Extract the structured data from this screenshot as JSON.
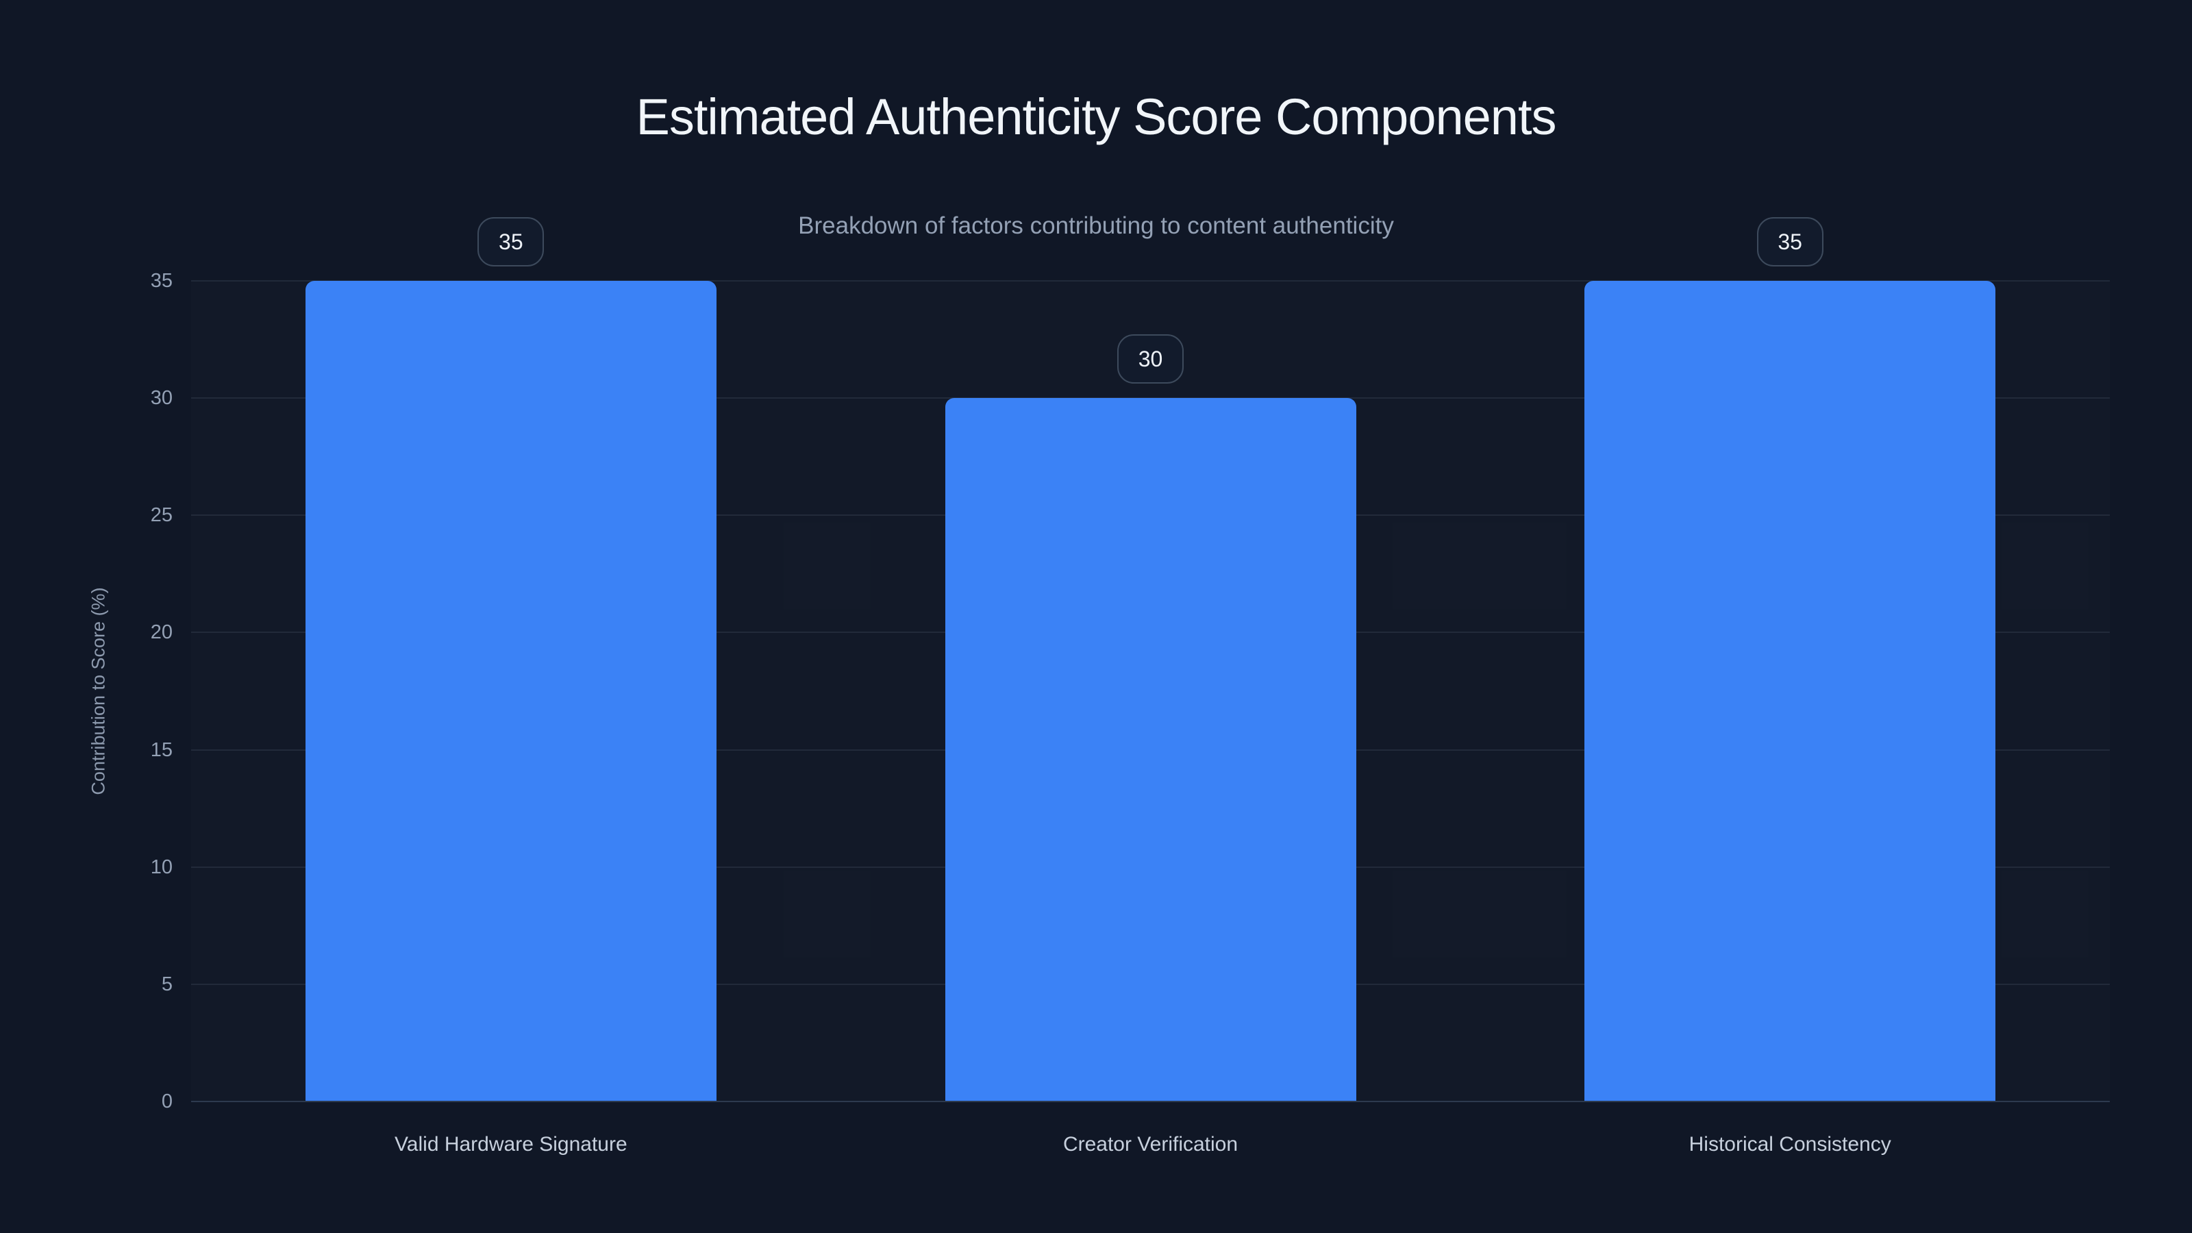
{
  "chart_data": {
    "type": "bar",
    "title": "Estimated Authenticity Score Components",
    "subtitle": "Breakdown of factors contributing to content authenticity",
    "ylabel": "Contribution to Score (%)",
    "xlabel": "",
    "categories": [
      "Valid Hardware Signature",
      "Creator Verification",
      "Historical Consistency"
    ],
    "values": [
      35,
      30,
      35
    ],
    "value_labels": [
      "35",
      "30",
      "35"
    ],
    "yticks": [
      0,
      5,
      10,
      15,
      20,
      25,
      30,
      35
    ],
    "ylim": [
      0,
      35
    ],
    "grid": true,
    "legend_position": "none",
    "bar_color": "#3b82f6",
    "background_color": "#101726",
    "grid_color": "rgba(148,163,184,0.13)",
    "axis_line_color": "#2d3a4f",
    "badge_border_color": "#3d4a5c",
    "title_color": "#f1f5f9",
    "subtitle_color": "#94a1b5",
    "tick_label_color": "#94a1b5",
    "category_label_color": "#c7d0dd"
  }
}
